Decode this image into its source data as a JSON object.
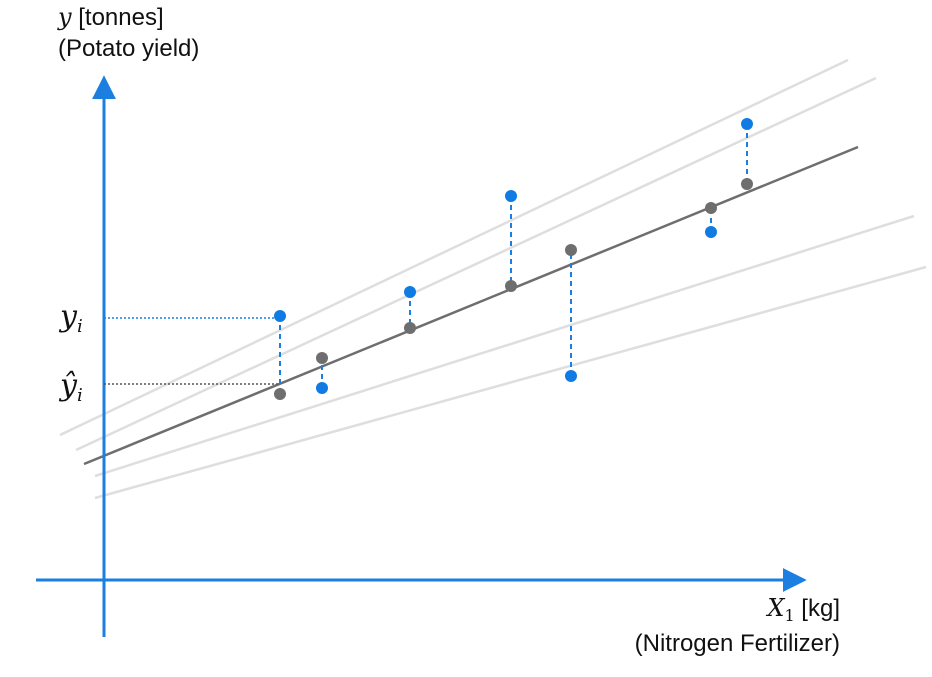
{
  "y_axis": {
    "var": "y",
    "unit": " [tonnes]",
    "desc": "(Potato yield)"
  },
  "x_axis": {
    "var": "X",
    "sub": "1",
    "unit": " [kg]",
    "desc": "(Nitrogen Fertilizer)"
  },
  "markers": {
    "y_i": "y",
    "yhat_i": "ŷ",
    "sub": "i"
  },
  "colors": {
    "axis": "#1a7fe0",
    "observed": "#0f7be3",
    "fitted": "#6e6e6e",
    "residual": "#1a7fe0",
    "candidate": "#dedede",
    "text": "#111111"
  },
  "chart_data": {
    "type": "scatter",
    "observed": [
      {
        "x": 1,
        "y": 5.2
      },
      {
        "x": 2,
        "y": 4.0
      },
      {
        "x": 3,
        "y": 5.6
      },
      {
        "x": 4,
        "y": 7.2
      },
      {
        "x": 5,
        "y": 4.2
      },
      {
        "x": 6,
        "y": 6.6
      },
      {
        "x": 7,
        "y": 8.4
      }
    ],
    "fitted": [
      {
        "x": 1,
        "y": 3.9
      },
      {
        "x": 2,
        "y": 4.5
      },
      {
        "x": 3,
        "y": 5.0
      },
      {
        "x": 4,
        "y": 5.7
      },
      {
        "x": 5,
        "y": 6.3
      },
      {
        "x": 6,
        "y": 7.0
      },
      {
        "x": 7,
        "y": 7.4
      }
    ],
    "regression_line": "fitted",
    "candidate_lines": 4,
    "residuals": "dashed",
    "grid": false
  }
}
